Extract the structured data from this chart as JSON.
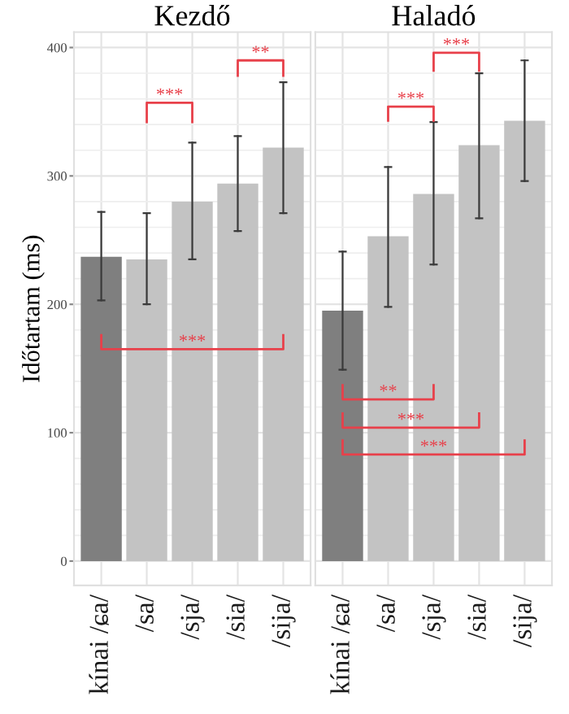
{
  "chart_data": [
    {
      "type": "bar",
      "title": "Kezdő",
      "ylabel": "Időtartam (ms)",
      "categories": [
        "kínai /ɕa/",
        "/sa/",
        "/sja/",
        "/sia/",
        "/sija/"
      ],
      "values": [
        237,
        235,
        280,
        294,
        322
      ],
      "errors": [
        [
          203,
          272
        ],
        [
          200,
          271
        ],
        [
          235,
          326
        ],
        [
          257,
          331
        ],
        [
          271,
          373
        ]
      ],
      "colors": [
        "#7f7f7f",
        "#c3c3c3",
        "#c3c3c3",
        "#c3c3c3",
        "#c3c3c3"
      ],
      "ylim": [
        -19,
        412
      ],
      "yticks": [
        0,
        100,
        200,
        300,
        400
      ],
      "grid": true,
      "annotations": [
        "***",
        "**",
        "***"
      ]
    },
    {
      "type": "bar",
      "title": "Haladó",
      "categories": [
        "kínai /ɕa/",
        "/sa/",
        "/sja/",
        "/sia/",
        "/sija/"
      ],
      "values": [
        195,
        253,
        286,
        324,
        343
      ],
      "errors": [
        [
          149,
          241
        ],
        [
          198,
          307
        ],
        [
          231,
          342
        ],
        [
          267,
          380
        ],
        [
          296,
          390
        ]
      ],
      "colors": [
        "#7f7f7f",
        "#c3c3c3",
        "#c3c3c3",
        "#c3c3c3",
        "#c3c3c3"
      ],
      "ylim": [
        -19,
        412
      ],
      "yticks": [
        0,
        100,
        200,
        300,
        400
      ],
      "grid": true,
      "tick_labels": "x",
      "annotations": [
        "***",
        "***",
        "**",
        "***",
        "***"
      ]
    }
  ]
}
